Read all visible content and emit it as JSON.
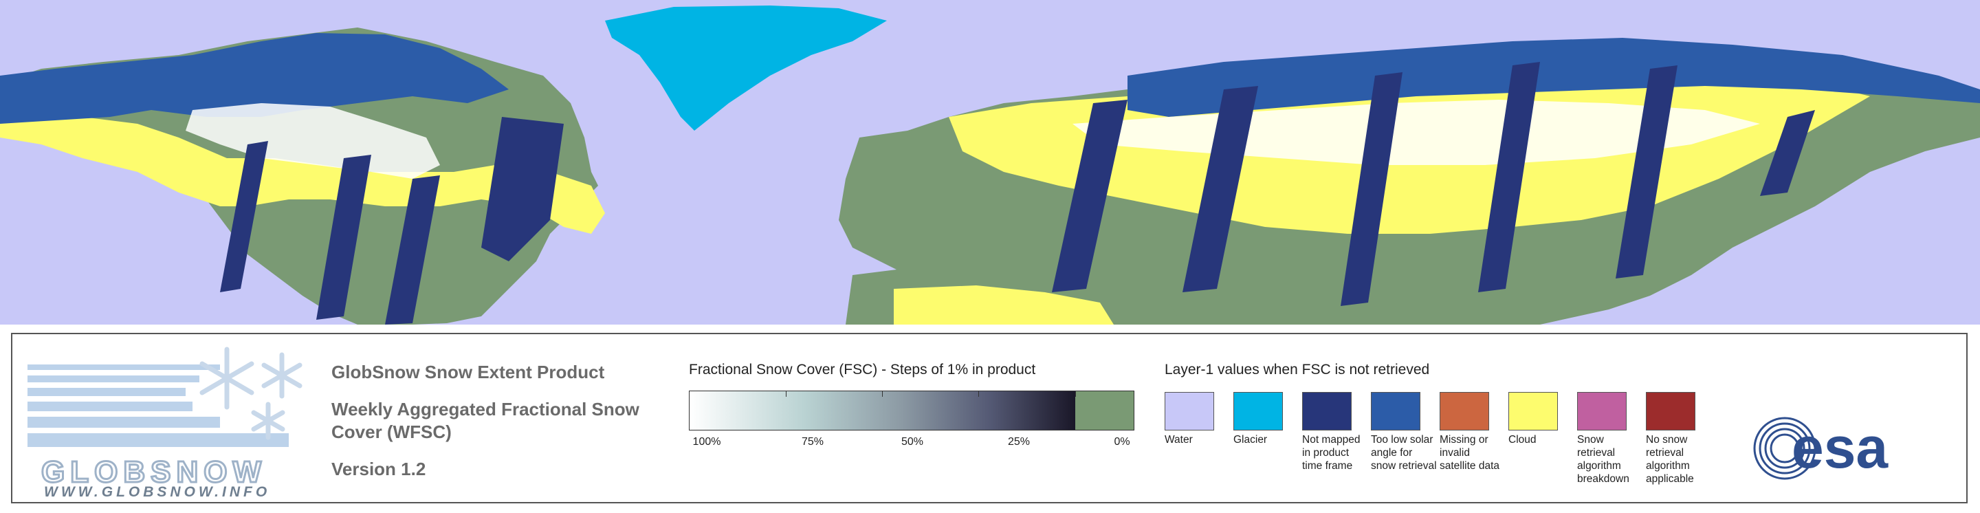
{
  "product": {
    "title": "GlobSnow Snow Extent Product",
    "subtitle": "Weekly Aggregated Fractional Snow Cover (WFSC)",
    "version": "Version 1.2"
  },
  "logo": {
    "wordmark": "GLOBSNOW",
    "url": "WWW.GLOBSNOW.INFO",
    "icon": "snowflake-icon"
  },
  "fsc_legend": {
    "title": "Fractional Snow Cover (FSC) - Steps of 1% in product",
    "ticks": [
      "100%",
      "75%",
      "50%",
      "25%",
      "0%"
    ],
    "zero_color": "#7a9a74"
  },
  "layer1_legend": {
    "title": "Layer-1 values when FSC is not retrieved",
    "items": [
      {
        "label": "Water",
        "color": "#c8c8f8"
      },
      {
        "label": "Glacier",
        "color": "#00b4e4"
      },
      {
        "label": "Not mapped in product time frame",
        "color": "#27367a"
      },
      {
        "label": "Too low solar angle for snow retrieval",
        "color": "#2c5ca8"
      },
      {
        "label": "Missing or invalid satellite data",
        "color": "#cc6640"
      },
      {
        "label": "Cloud",
        "color": "#fdfc6e"
      },
      {
        "label": "Snow retrieval algorithm breakdown",
        "color": "#c060a0"
      },
      {
        "label": "No snow retrieval algorithm applicable",
        "color": "#9c2c2c"
      }
    ]
  },
  "esa_logo": {
    "text": "esa",
    "color": "#2f4f8f"
  },
  "map_colors": {
    "water": "#c8c8f8",
    "glacier": "#00b4e4",
    "not_mapped": "#27367a",
    "low_solar": "#2c5ca8",
    "cloud": "#fdfc6e",
    "no_snow": "#7a9a74",
    "snow": "#ffffff"
  }
}
